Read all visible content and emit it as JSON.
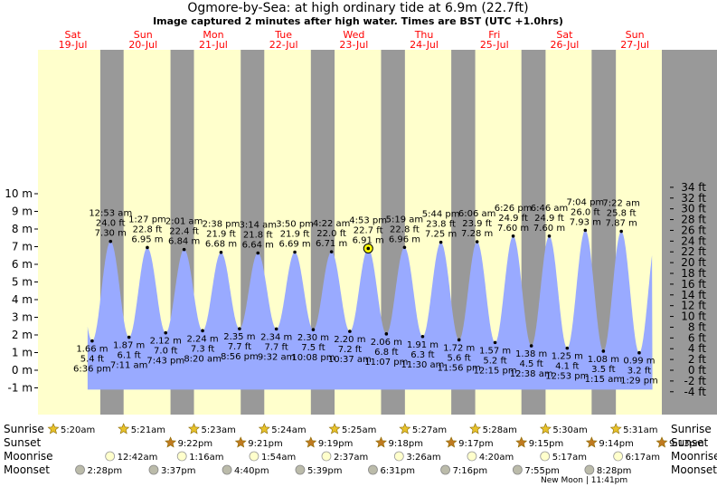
{
  "header": {
    "title": "Ogmore-by-Sea: at high  ordinary tide at 6.9m (22.7ft)",
    "subtitle": "Image captured 2 minutes after high water. Times are BST (UTC +1.0hrs)"
  },
  "colors": {
    "day": "#ffffcc",
    "night": "#999999",
    "tide": "#99aaff",
    "text": "#000000",
    "day_label": "#ff0000",
    "axis_bg": "#999999"
  },
  "days": [
    {
      "dow": "Sat",
      "date": "19-Jul"
    },
    {
      "dow": "Sun",
      "date": "20-Jul"
    },
    {
      "dow": "Mon",
      "date": "21-Jul"
    },
    {
      "dow": "Tue",
      "date": "22-Jul"
    },
    {
      "dow": "Wed",
      "date": "23-Jul"
    },
    {
      "dow": "Thu",
      "date": "24-Jul"
    },
    {
      "dow": "Fri",
      "date": "25-Jul"
    },
    {
      "dow": "Sat",
      "date": "26-Jul"
    },
    {
      "dow": "Sun",
      "date": "27-Jul"
    }
  ],
  "chart_data": {
    "type": "area",
    "title": "Ogmore-by-Sea: at high  ordinary tide at 6.9m (22.7ft)",
    "ylim_m": [
      -1.6,
      10.8
    ],
    "left_ticks": [
      "-1 m",
      "0 m",
      "1 m",
      "2 m",
      "3 m",
      "4 m",
      "5 m",
      "6 m",
      "7 m",
      "8 m",
      "9 m",
      "10 m"
    ],
    "right_ticks": [
      "-4 ft",
      "-2 ft",
      "0 ft",
      "2 ft",
      "4 ft",
      "6 ft",
      "8 ft",
      "10 ft",
      "12 ft",
      "14 ft",
      "16 ft",
      "18 ft",
      "20 ft",
      "22 ft",
      "24 ft",
      "26 ft",
      "28 ft",
      "30 ft",
      "32 ft",
      "34 ft"
    ],
    "tides": [
      {
        "type": "low",
        "time": "6:36 pm",
        "t": 18.6,
        "m": 1.66,
        "m_label": "1.66 m",
        "ft_label": "5.4 ft"
      },
      {
        "type": "high",
        "time": "12:53 am",
        "t": 24.883,
        "m": 7.3,
        "m_label": "7.30 m",
        "ft_label": "24.0 ft"
      },
      {
        "type": "low",
        "time": "7:11 am",
        "t": 31.183,
        "m": 1.87,
        "m_label": "1.87 m",
        "ft_label": "6.1 ft"
      },
      {
        "type": "high",
        "time": "1:27 pm",
        "t": 37.45,
        "m": 6.95,
        "m_label": "6.95 m",
        "ft_label": "22.8 ft"
      },
      {
        "type": "low",
        "time": "7:43 pm",
        "t": 43.717,
        "m": 2.12,
        "m_label": "2.12 m",
        "ft_label": "7.0 ft"
      },
      {
        "type": "high",
        "time": "2:01 am",
        "t": 50.017,
        "m": 6.84,
        "m_label": "6.84 m",
        "ft_label": "22.4 ft"
      },
      {
        "type": "low",
        "time": "8:20 am",
        "t": 56.333,
        "m": 2.24,
        "m_label": "2.24 m",
        "ft_label": "7.3 ft"
      },
      {
        "type": "high",
        "time": "2:38 pm",
        "t": 62.633,
        "m": 6.68,
        "m_label": "6.68 m",
        "ft_label": "21.9 ft"
      },
      {
        "type": "low",
        "time": "8:56 pm",
        "t": 68.933,
        "m": 2.35,
        "m_label": "2.35 m",
        "ft_label": "7.7 ft"
      },
      {
        "type": "high",
        "time": "3:14 am",
        "t": 75.233,
        "m": 6.64,
        "m_label": "6.64 m",
        "ft_label": "21.8 ft"
      },
      {
        "type": "low",
        "time": "9:32 am",
        "t": 81.533,
        "m": 2.34,
        "m_label": "2.34 m",
        "ft_label": "7.7 ft"
      },
      {
        "type": "high",
        "time": "3:50 pm",
        "t": 87.833,
        "m": 6.69,
        "m_label": "6.69 m",
        "ft_label": "21.9 ft"
      },
      {
        "type": "low",
        "time": "10:08 pm",
        "t": 94.133,
        "m": 2.3,
        "m_label": "2.30 m",
        "ft_label": "7.5 ft"
      },
      {
        "type": "high",
        "time": "4:22 am",
        "t": 100.367,
        "m": 6.71,
        "m_label": "6.71 m",
        "ft_label": "22.0 ft"
      },
      {
        "type": "low",
        "time": "10:37 am",
        "t": 106.617,
        "m": 2.2,
        "m_label": "2.20 m",
        "ft_label": "7.2 ft"
      },
      {
        "type": "high",
        "time": "4:53 pm",
        "t": 112.883,
        "m": 6.91,
        "m_label": "6.91 m",
        "ft_label": "22.7 ft"
      },
      {
        "type": "low",
        "time": "11:07 pm",
        "t": 119.117,
        "m": 2.06,
        "m_label": "2.06 m",
        "ft_label": "6.8 ft"
      },
      {
        "type": "high",
        "time": "5:19 am",
        "t": 125.317,
        "m": 6.96,
        "m_label": "6.96 m",
        "ft_label": "22.8 ft"
      },
      {
        "type": "low",
        "time": "11:30 am",
        "t": 131.5,
        "m": 1.91,
        "m_label": "1.91 m",
        "ft_label": "6.3 ft"
      },
      {
        "type": "high",
        "time": "5:44 pm",
        "t": 137.733,
        "m": 7.25,
        "m_label": "7.25 m",
        "ft_label": "23.8 ft"
      },
      {
        "type": "low",
        "time": "11:56 pm",
        "t": 143.933,
        "m": 1.72,
        "m_label": "1.72 m",
        "ft_label": "5.6 ft"
      },
      {
        "type": "high",
        "time": "6:06 am",
        "t": 150.1,
        "m": 7.28,
        "m_label": "7.28 m",
        "ft_label": "23.9 ft"
      },
      {
        "type": "low",
        "time": "12:15 pm",
        "t": 156.25,
        "m": 1.57,
        "m_label": "1.57 m",
        "ft_label": "5.2 ft"
      },
      {
        "type": "high",
        "time": "6:26 pm",
        "t": 162.433,
        "m": 7.6,
        "m_label": "7.60 m",
        "ft_label": "24.9 ft"
      },
      {
        "type": "low",
        "time": "12:38 am",
        "t": 168.633,
        "m": 1.38,
        "m_label": "1.38 m",
        "ft_label": "4.5 ft"
      },
      {
        "type": "high",
        "time": "6:46 am",
        "t": 174.767,
        "m": 7.6,
        "m_label": "7.60 m",
        "ft_label": "24.9 ft"
      },
      {
        "type": "low",
        "time": "12:53 pm",
        "t": 180.883,
        "m": 1.25,
        "m_label": "1.25 m",
        "ft_label": "4.1 ft"
      },
      {
        "type": "high",
        "time": "7:04 pm",
        "t": 187.067,
        "m": 7.93,
        "m_label": "7.93 m",
        "ft_label": "26.0 ft"
      },
      {
        "type": "low",
        "time": "1:15 am",
        "t": 193.25,
        "m": 1.08,
        "m_label": "1.08 m",
        "ft_label": "3.5 ft"
      },
      {
        "type": "high",
        "time": "7:22 am",
        "t": 199.367,
        "m": 7.87,
        "m_label": "7.87 m",
        "ft_label": "25.8 ft"
      },
      {
        "type": "low",
        "time": "1:29 pm",
        "t": 205.483,
        "m": 0.99,
        "m_label": "0.99 m",
        "ft_label": "3.2 ft"
      }
    ],
    "current": {
      "t": 112.917,
      "m": 6.9
    }
  },
  "astro": {
    "labels": {
      "sunrise": "Sunrise",
      "sunset": "Sunset",
      "moonrise": "Moonrise",
      "moonset": "Moonset"
    },
    "sunrise": [
      {
        "t": 5.333,
        "time": "5:20am"
      },
      {
        "t": 29.35,
        "time": "5:21am"
      },
      {
        "t": 53.383,
        "time": "5:23am"
      },
      {
        "t": 77.4,
        "time": "5:24am"
      },
      {
        "t": 101.417,
        "time": "5:25am"
      },
      {
        "t": 125.45,
        "time": "5:27am"
      },
      {
        "t": 149.467,
        "time": "5:28am"
      },
      {
        "t": 173.5,
        "time": "5:30am"
      },
      {
        "t": 197.517,
        "time": "5:31am"
      }
    ],
    "sunset": [
      {
        "t": 45.367,
        "time": "9:22pm"
      },
      {
        "t": 69.35,
        "time": "9:21pm"
      },
      {
        "t": 93.317,
        "time": "9:19pm"
      },
      {
        "t": 117.3,
        "time": "9:18pm"
      },
      {
        "t": 141.283,
        "time": "9:17pm"
      },
      {
        "t": 165.25,
        "time": "9:15pm"
      },
      {
        "t": 189.233,
        "time": "9:14pm"
      },
      {
        "t": 213.217,
        "time": "9:13pm"
      }
    ],
    "moonrise": [
      {
        "t": 24.7,
        "time": "12:42am"
      },
      {
        "t": 49.267,
        "time": "1:16am"
      },
      {
        "t": 73.9,
        "time": "1:54am"
      },
      {
        "t": 98.617,
        "time": "2:37am"
      },
      {
        "t": 123.433,
        "time": "3:26am"
      },
      {
        "t": 148.333,
        "time": "4:20am"
      },
      {
        "t": 173.283,
        "time": "5:17am"
      },
      {
        "t": 198.283,
        "time": "6:17am"
      }
    ],
    "moonset": [
      {
        "t": 14.467,
        "time": "2:28pm"
      },
      {
        "t": 39.617,
        "time": "3:37pm"
      },
      {
        "t": 64.667,
        "time": "4:40pm"
      },
      {
        "t": 89.65,
        "time": "5:39pm"
      },
      {
        "t": 114.517,
        "time": "6:31pm"
      },
      {
        "t": 139.267,
        "time": "7:16pm"
      },
      {
        "t": 163.917,
        "time": "7:55pm"
      },
      {
        "t": 188.467,
        "time": "8:28pm"
      }
    ],
    "new_moon": "New Moon | 11:41pm"
  }
}
